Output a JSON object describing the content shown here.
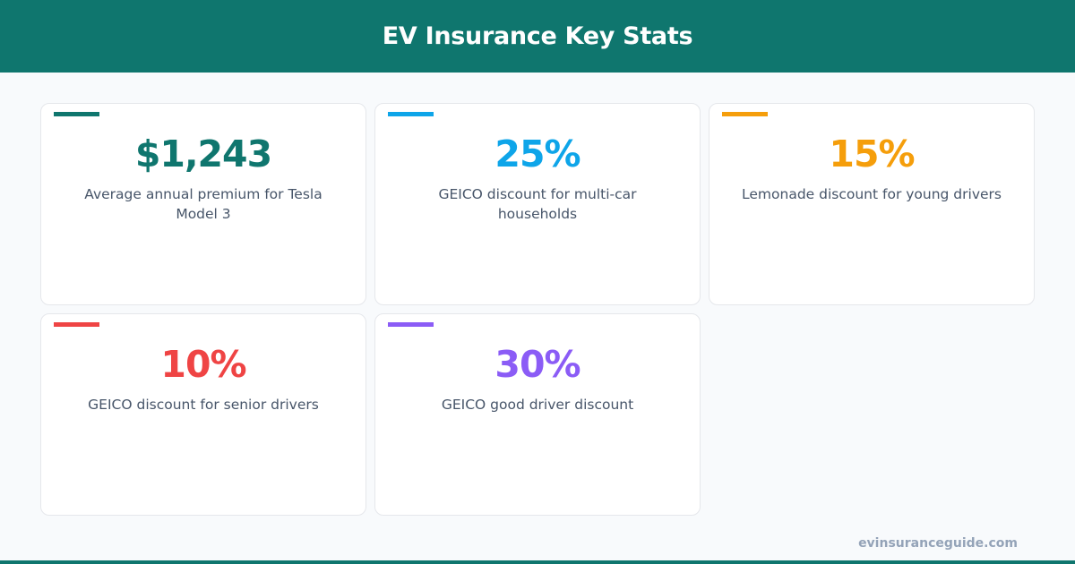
{
  "header": {
    "title": "EV Insurance Key Stats",
    "background": "#0f766e"
  },
  "stats": [
    {
      "value": "$1,243",
      "label": "Average annual premium for Tesla Model 3",
      "color": "#0f766e"
    },
    {
      "value": "25%",
      "label": "GEICO discount for multi-car households",
      "color": "#0ea5e9"
    },
    {
      "value": "15%",
      "label": "Lemonade discount for young drivers",
      "color": "#f59e0b"
    },
    {
      "value": "10%",
      "label": "GEICO discount for senior drivers",
      "color": "#ef4444"
    },
    {
      "value": "30%",
      "label": "GEICO good driver discount",
      "color": "#8b5cf6"
    }
  ],
  "footer": {
    "url": "evinsuranceguide.com"
  }
}
